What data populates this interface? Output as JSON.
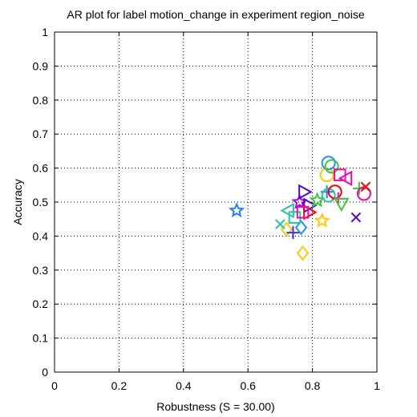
{
  "chart_data": {
    "type": "scatter",
    "title": "AR plot for label motion_change in experiment region_noise",
    "xlabel": "Robustness (S = 30.00)",
    "ylabel": "Accuracy",
    "xlim": [
      0,
      1
    ],
    "ylim": [
      0,
      1
    ],
    "xticks": [
      "0",
      "0.2",
      "0.4",
      "0.6",
      "0.8",
      "1"
    ],
    "yticks": [
      "0",
      "0.1",
      "0.2",
      "0.3",
      "0.4",
      "0.5",
      "0.6",
      "0.7",
      "0.8",
      "0.9",
      "1"
    ],
    "grid": true,
    "points": [
      {
        "x": 0.565,
        "y": 0.475,
        "marker": "star",
        "color": "#1e7fff"
      },
      {
        "x": 0.77,
        "y": 0.35,
        "marker": "diamond",
        "color": "#ffcc00"
      },
      {
        "x": 0.72,
        "y": 0.42,
        "marker": "diamond",
        "color": "#ffcc00"
      },
      {
        "x": 0.7,
        "y": 0.435,
        "marker": "x",
        "color": "#1ec8a0"
      },
      {
        "x": 0.74,
        "y": 0.41,
        "marker": "plus",
        "color": "#3333ff"
      },
      {
        "x": 0.765,
        "y": 0.425,
        "marker": "diamond",
        "color": "#1e90ff"
      },
      {
        "x": 0.725,
        "y": 0.475,
        "marker": "triangle-left",
        "color": "#1ec8a0"
      },
      {
        "x": 0.745,
        "y": 0.455,
        "marker": "square",
        "color": "#1ec8a0"
      },
      {
        "x": 0.76,
        "y": 0.5,
        "marker": "star",
        "color": "#aa00ff"
      },
      {
        "x": 0.775,
        "y": 0.53,
        "marker": "triangle-right",
        "color": "#5500ee"
      },
      {
        "x": 0.79,
        "y": 0.49,
        "marker": "triangle-right",
        "color": "#5500ee"
      },
      {
        "x": 0.79,
        "y": 0.47,
        "marker": "triangle-right",
        "color": "#ff0000"
      },
      {
        "x": 0.77,
        "y": 0.47,
        "marker": "square",
        "color": "#ff00aa"
      },
      {
        "x": 0.815,
        "y": 0.505,
        "marker": "star",
        "color": "#33cc33"
      },
      {
        "x": 0.83,
        "y": 0.445,
        "marker": "star",
        "color": "#ffcc00"
      },
      {
        "x": 0.845,
        "y": 0.53,
        "marker": "plus",
        "color": "#1e7fff"
      },
      {
        "x": 0.85,
        "y": 0.52,
        "marker": "circle",
        "color": "#1ec8a0"
      },
      {
        "x": 0.845,
        "y": 0.58,
        "marker": "circle",
        "color": "#ffcc00"
      },
      {
        "x": 0.85,
        "y": 0.615,
        "marker": "circle",
        "color": "#1e90ff"
      },
      {
        "x": 0.86,
        "y": 0.605,
        "marker": "circle",
        "color": "#33cc33"
      },
      {
        "x": 0.87,
        "y": 0.53,
        "marker": "circle",
        "color": "#ff0000"
      },
      {
        "x": 0.88,
        "y": 0.51,
        "marker": "plus",
        "color": "#ff00aa"
      },
      {
        "x": 0.89,
        "y": 0.495,
        "marker": "triangle-down",
        "color": "#33cc33"
      },
      {
        "x": 0.885,
        "y": 0.58,
        "marker": "square",
        "color": "#ff00aa"
      },
      {
        "x": 0.905,
        "y": 0.57,
        "marker": "triangle-left",
        "color": "#ff00aa"
      },
      {
        "x": 0.935,
        "y": 0.455,
        "marker": "x",
        "color": "#5500ee"
      },
      {
        "x": 0.945,
        "y": 0.54,
        "marker": "plus",
        "color": "#33cc33"
      },
      {
        "x": 0.96,
        "y": 0.525,
        "marker": "circle",
        "color": "#ff00aa"
      },
      {
        "x": 0.965,
        "y": 0.545,
        "marker": "x",
        "color": "#ff0000"
      }
    ]
  }
}
